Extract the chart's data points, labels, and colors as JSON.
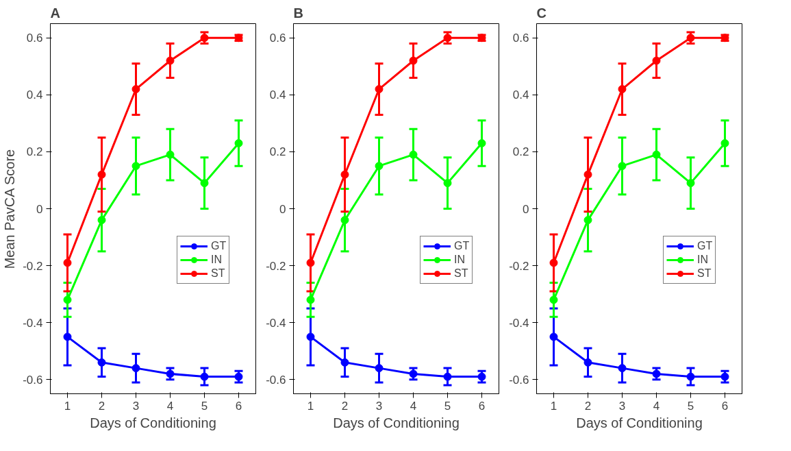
{
  "chart_data": [
    {
      "type": "line",
      "title": "A",
      "xlabel": "Days of Conditioning",
      "ylabel": "Mean PavCA Score",
      "x": [
        1,
        2,
        3,
        4,
        5,
        6
      ],
      "xlim": [
        0.5,
        6.5
      ],
      "xticks": [
        1,
        2,
        3,
        4,
        5,
        6
      ],
      "ylim": [
        -0.65,
        0.65
      ],
      "yticks": [
        -0.6,
        -0.4,
        -0.2,
        0,
        0.2,
        0.4,
        0.6
      ],
      "marker": "circle",
      "grid": false,
      "legend": "right",
      "series": [
        {
          "name": "GT",
          "color": "#0000ff",
          "values": [
            -0.45,
            -0.54,
            -0.56,
            -0.58,
            -0.59,
            -0.59
          ],
          "errors": [
            0.1,
            0.05,
            0.05,
            0.02,
            0.03,
            0.02
          ]
        },
        {
          "name": "IN",
          "color": "#00ff00",
          "values": [
            -0.32,
            -0.04,
            0.15,
            0.19,
            0.09,
            0.23
          ],
          "errors": [
            0.06,
            0.11,
            0.1,
            0.09,
            0.09,
            0.08
          ]
        },
        {
          "name": "ST",
          "color": "#ff0000",
          "values": [
            -0.19,
            0.12,
            0.42,
            0.52,
            0.6,
            0.6
          ],
          "errors": [
            0.1,
            0.13,
            0.09,
            0.06,
            0.02,
            0.01
          ]
        }
      ]
    },
    {
      "type": "line",
      "title": "B",
      "xlabel": "Days of Conditioning",
      "x": [
        1,
        2,
        3,
        4,
        5,
        6
      ],
      "xlim": [
        0.5,
        6.5
      ],
      "xticks": [
        1,
        2,
        3,
        4,
        5,
        6
      ],
      "ylim": [
        -0.65,
        0.65
      ],
      "yticks": [
        -0.6,
        -0.4,
        -0.2,
        0,
        0.2,
        0.4,
        0.6
      ],
      "marker": "circle",
      "grid": false,
      "legend": "right",
      "series": [
        {
          "name": "GT",
          "color": "#0000ff",
          "values": [
            -0.45,
            -0.54,
            -0.56,
            -0.58,
            -0.59,
            -0.59
          ],
          "errors": [
            0.1,
            0.05,
            0.05,
            0.02,
            0.03,
            0.02
          ]
        },
        {
          "name": "IN",
          "color": "#00ff00",
          "values": [
            -0.32,
            -0.04,
            0.15,
            0.19,
            0.09,
            0.23
          ],
          "errors": [
            0.06,
            0.11,
            0.1,
            0.09,
            0.09,
            0.08
          ]
        },
        {
          "name": "ST",
          "color": "#ff0000",
          "values": [
            -0.19,
            0.12,
            0.42,
            0.52,
            0.6,
            0.6
          ],
          "errors": [
            0.1,
            0.13,
            0.09,
            0.06,
            0.02,
            0.01
          ]
        }
      ]
    },
    {
      "type": "line",
      "title": "C",
      "xlabel": "Days of Conditioning",
      "x": [
        1,
        2,
        3,
        4,
        5,
        6
      ],
      "xlim": [
        0.5,
        6.5
      ],
      "xticks": [
        1,
        2,
        3,
        4,
        5,
        6
      ],
      "ylim": [
        -0.65,
        0.65
      ],
      "yticks": [
        -0.6,
        -0.4,
        -0.2,
        0,
        0.2,
        0.4,
        0.6
      ],
      "marker": "circle",
      "grid": false,
      "legend": "right",
      "series": [
        {
          "name": "GT",
          "color": "#0000ff",
          "values": [
            -0.45,
            -0.54,
            -0.56,
            -0.58,
            -0.59,
            -0.59
          ],
          "errors": [
            0.1,
            0.05,
            0.05,
            0.02,
            0.03,
            0.02
          ]
        },
        {
          "name": "IN",
          "color": "#00ff00",
          "values": [
            -0.32,
            -0.04,
            0.15,
            0.19,
            0.09,
            0.23
          ],
          "errors": [
            0.06,
            0.11,
            0.1,
            0.09,
            0.09,
            0.08
          ]
        },
        {
          "name": "ST",
          "color": "#ff0000",
          "values": [
            -0.19,
            0.12,
            0.42,
            0.52,
            0.6,
            0.6
          ],
          "errors": [
            0.1,
            0.13,
            0.09,
            0.06,
            0.02,
            0.01
          ]
        }
      ]
    }
  ]
}
